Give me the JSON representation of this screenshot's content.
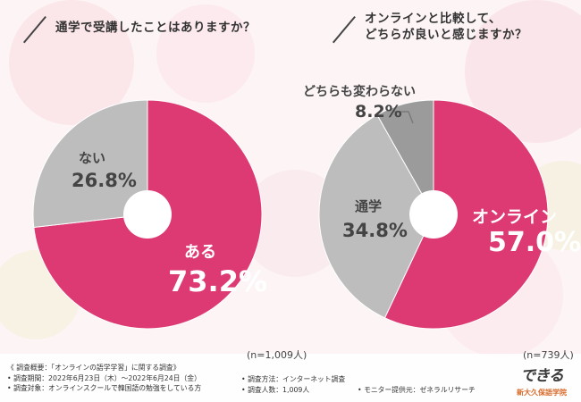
{
  "colors": {
    "pink": "#dd3a73",
    "gray_light": "#bdbdbd",
    "gray_dark": "#9b9b9b",
    "leader": "#7a7a7a"
  },
  "questions": {
    "q1": "通学で受講したことはありますか？",
    "q2_line1": "オンラインと比較して、",
    "q2_line2": "どちらが良いと感じますか？"
  },
  "chart_data": [
    {
      "type": "pie",
      "title": "通学で受講したことはありますか？",
      "labels": [
        "ある",
        "ない"
      ],
      "values": [
        73.2,
        26.8
      ],
      "value_labels": [
        "73.2%",
        "26.8%"
      ],
      "n_label": "(n=1,009人)"
    },
    {
      "type": "pie",
      "title": "オンラインと比較して、どちらが良いと感じますか？",
      "labels": [
        "オンライン",
        "通学",
        "どちらも変わらない"
      ],
      "values": [
        57.0,
        34.8,
        8.2
      ],
      "value_labels": [
        "57.0%",
        "34.8%",
        "8.2%"
      ],
      "n_label": "(n=739人)"
    }
  ],
  "footer": {
    "overview": "《 調査概要：「オンラインの語学学習」に関する調査》",
    "period": "• 調査期間：2022年6月23日（木）～2022年6月24日（金）",
    "target": "• 調査対象：オンラインスクールで韓国語の勉強をしている方",
    "method": "• 調査方法：インターネット調査",
    "count": "• 調査人数：1,009人",
    "provider": "• モニター提供元：ゼネラルリサーチ"
  },
  "brand": {
    "logo": "できる",
    "name": "新大久保語学院"
  }
}
